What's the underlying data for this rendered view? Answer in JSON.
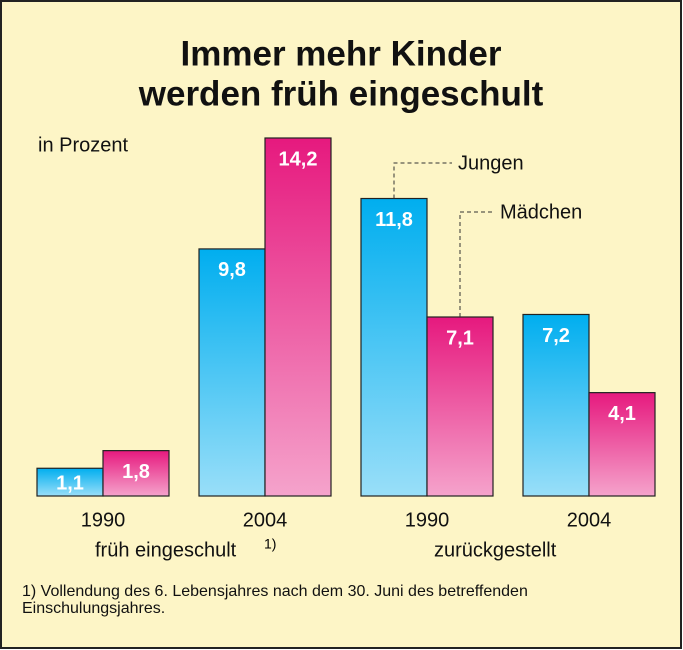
{
  "chart_data": {
    "type": "bar",
    "title": [
      "Immer mehr Kinder",
      "werden früh eingeschult"
    ],
    "unit": "in Prozent",
    "categories": [
      "1990",
      "2004",
      "1990",
      "2004"
    ],
    "groups": [
      {
        "label": "früh eingeschult",
        "note": "1)"
      },
      {
        "label": "zurückgestellt"
      }
    ],
    "series": [
      {
        "name": "Jungen",
        "color": "#00aeef",
        "values": [
          1.1,
          9.8,
          11.8,
          7.2
        ],
        "value_labels": [
          "1,1",
          "9,8",
          "11,8",
          "7,2"
        ]
      },
      {
        "name": "Mädchen",
        "color": "#e6197e",
        "values": [
          1.8,
          14.2,
          7.1,
          4.1
        ],
        "value_labels": [
          "1,8",
          "14,2",
          "7,1",
          "4,1"
        ]
      }
    ],
    "footnote": [
      "1) Vollendung des 6. Lebensjahres nach dem 30. Juni des betreffenden",
      "Einschulungsjahres."
    ]
  }
}
